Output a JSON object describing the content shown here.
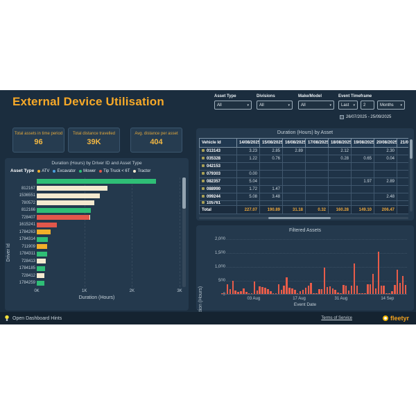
{
  "header": {
    "title": "External Device Utilisation"
  },
  "icons": {
    "chevron_down": "▾",
    "bulb": "lightbulb-icon"
  },
  "colors": {
    "accent_orange": "#f7a928",
    "dashboard_bg": "#1b2d3e",
    "panel_bg": "#24394d",
    "kpi_value": "#f2b742",
    "bar_red": "#e85c49"
  },
  "filters": {
    "asset_type": {
      "label": "Asset Type",
      "value": "All"
    },
    "divisions": {
      "label": "Divisions",
      "value": "All"
    },
    "make_model": {
      "label": "Make/Model",
      "value": "All"
    },
    "event_timeframe": {
      "label": "Event Timeframe",
      "last": "Last",
      "count": "2",
      "unit": "Months",
      "range": "26/07/2025 - 25/09/2025"
    }
  },
  "kpis": [
    {
      "label": "Total assets in time period",
      "value": "96"
    },
    {
      "label": "Total distance travelled",
      "value": "39K"
    },
    {
      "label": "Avg. distance per asset",
      "value": "404"
    }
  ],
  "chart_data": [
    {
      "type": "bar",
      "orientation": "horizontal",
      "title": "Duration (Hours) by Driver ID and Asset Type",
      "xlabel": "Duration (Hours)",
      "ylabel": "Driver Id",
      "xlim": [
        0,
        3000
      ],
      "xticks": [
        {
          "label": "0K",
          "value": 0
        },
        {
          "label": "1K",
          "value": 1000
        },
        {
          "label": "2K",
          "value": 2000
        },
        {
          "label": "3K",
          "value": 3000
        }
      ],
      "legend_title": "Asset Type",
      "legend": [
        {
          "label": "ATV",
          "color": "#f2af29"
        },
        {
          "label": "Excavator",
          "color": "#4ba0dd"
        },
        {
          "label": "Mower",
          "color": "#2fbe76"
        },
        {
          "label": "Tip Truck < 6T",
          "color": "#e2574b"
        },
        {
          "label": "Tractor",
          "color": "#f4ead0"
        }
      ],
      "bars": [
        {
          "driver": "",
          "segments": [
            {
              "asset_type": "Mower",
              "value": 2510
            }
          ]
        },
        {
          "driver": "812167",
          "segments": [
            {
              "asset_type": "Tractor",
              "value": 1490
            }
          ]
        },
        {
          "driver": "1536551",
          "segments": [
            {
              "asset_type": "Tractor",
              "value": 1320
            }
          ]
        },
        {
          "driver": "780572",
          "segments": [
            {
              "asset_type": "Tractor",
              "value": 1210
            }
          ]
        },
        {
          "driver": "812166",
          "segments": [
            {
              "asset_type": "Mower",
              "value": 1140
            }
          ]
        },
        {
          "driver": "728407",
          "segments": [
            {
              "asset_type": "Tip Truck < 6T",
              "value": 1100
            },
            {
              "asset_type": "Tractor",
              "value": 25
            }
          ]
        },
        {
          "driver": "1615241",
          "segments": [
            {
              "asset_type": "Tip Truck < 6T",
              "value": 425
            }
          ]
        },
        {
          "driver": "1784263",
          "segments": [
            {
              "asset_type": "ATV",
              "value": 285
            }
          ]
        },
        {
          "driver": "1784314",
          "segments": [
            {
              "asset_type": "Mower",
              "value": 235
            }
          ]
        },
        {
          "driver": "711909",
          "segments": [
            {
              "asset_type": "ATV",
              "value": 222
            }
          ]
        },
        {
          "driver": "1784311",
          "segments": [
            {
              "asset_type": "Mower",
              "value": 212
            }
          ]
        },
        {
          "driver": "728413",
          "segments": [
            {
              "asset_type": "Tractor",
              "value": 192
            }
          ]
        },
        {
          "driver": "1784185",
          "segments": [
            {
              "asset_type": "Mower",
              "value": 172
            }
          ]
        },
        {
          "driver": "728412",
          "segments": [
            {
              "asset_type": "Tractor",
              "value": 158
            }
          ]
        },
        {
          "driver": "1784259",
          "segments": [
            {
              "asset_type": "Mower",
              "value": 155
            }
          ]
        }
      ]
    },
    {
      "type": "table",
      "title": "Duration (Hours) by Asset",
      "id_header": "Vehicle Id",
      "columns": [
        "14/08/2025",
        "15/08/2025",
        "16/08/2025",
        "17/08/2025",
        "18/08/2025",
        "19/08/2025",
        "20/08/2025",
        "21/08/20"
      ],
      "rows": [
        {
          "id": "013143",
          "values": [
            "3.23",
            "2.85",
            "2.89",
            "",
            "2.12",
            "",
            "2.30",
            ""
          ]
        },
        {
          "id": "035328",
          "values": [
            "1.22",
            "0.76",
            "",
            "",
            "0.28",
            "0.65",
            "0.04",
            ""
          ]
        },
        {
          "id": "042153",
          "values": [
            "",
            "",
            "",
            "",
            "",
            "",
            "",
            ""
          ]
        },
        {
          "id": "079303",
          "values": [
            "0.00",
            "",
            "",
            "",
            "",
            "",
            "",
            ""
          ]
        },
        {
          "id": "082357",
          "values": [
            "5.04",
            "",
            "",
            "",
            "",
            "1.97",
            "2.89",
            ""
          ]
        },
        {
          "id": "088990",
          "values": [
            "1.72",
            "1.47",
            "",
            "",
            "",
            "",
            "",
            ""
          ]
        },
        {
          "id": "099244",
          "values": [
            "5.08",
            "3.48",
            "",
            "",
            "",
            "",
            "2.48",
            ""
          ]
        },
        {
          "id": "105761",
          "values": [
            "",
            "",
            "",
            "",
            "",
            "",
            "",
            ""
          ]
        }
      ],
      "total": {
        "label": "Total",
        "values": [
          "227.07",
          "190.89",
          "31.18",
          "0.32",
          "160.28",
          "149.10",
          "206.47",
          "20"
        ]
      }
    },
    {
      "type": "bar",
      "title": "Filtered Assets",
      "xlabel": "Event Date",
      "ylabel": "Duration (Hours)",
      "ylim": [
        0,
        2000
      ],
      "yticks": [
        {
          "label": "0",
          "value": 0
        },
        {
          "label": "500",
          "value": 500
        },
        {
          "label": "1,000",
          "value": 1000
        },
        {
          "label": "1,500",
          "value": 1500
        },
        {
          "label": "2,000",
          "value": 2000
        }
      ],
      "xticks": [
        {
          "label": "03 Aug",
          "pos": 0.175
        },
        {
          "label": "17 Aug",
          "pos": 0.42
        },
        {
          "label": "31 Aug",
          "pos": 0.645
        },
        {
          "label": "14 Sep",
          "pos": 0.895
        }
      ],
      "bar_color": "#e85c49",
      "values": [
        25,
        20,
        350,
        170,
        480,
        120,
        85,
        95,
        200,
        70,
        15,
        20,
        440,
        130,
        280,
        260,
        235,
        175,
        100,
        15,
        25,
        350,
        150,
        290,
        590,
        220,
        190,
        150,
        15,
        110,
        150,
        230,
        300,
        390,
        35,
        15,
        165,
        185,
        950,
        260,
        280,
        190,
        160,
        60,
        15,
        320,
        290,
        120,
        300,
        1090,
        290,
        25,
        15,
        35,
        350,
        340,
        720,
        200,
        1520,
        290,
        290,
        25,
        15,
        100,
        330,
        870,
        410,
        640,
        320
      ]
    }
  ],
  "footer": {
    "hints_label": "Open Dashboard Hints",
    "terms": "Terms of Service",
    "brand": "fleetyr"
  }
}
